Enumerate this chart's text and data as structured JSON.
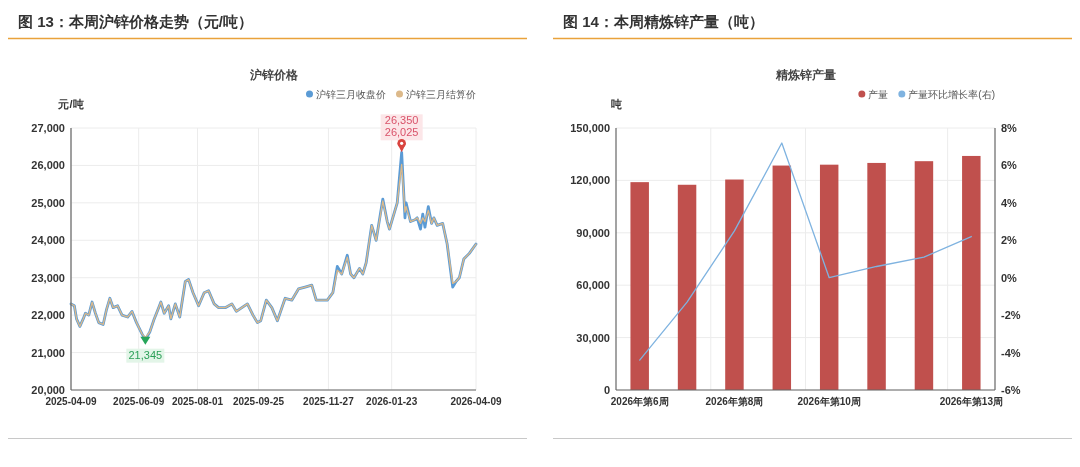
{
  "chart_data": [
    {
      "type": "line",
      "title": "图 13：本周沪锌价格走势（元/吨）",
      "subtitle": "沪锌价格",
      "ylabel": "元/吨",
      "x": [
        "2025-04-09",
        "2025-04-12",
        "2025-04-14",
        "2025-04-17",
        "2025-04-20",
        "2025-04-22",
        "2025-04-25",
        "2025-04-28",
        "2025-05-01",
        "2025-05-04",
        "2025-05-08",
        "2025-05-11",
        "2025-05-14",
        "2025-05-17",
        "2025-05-21",
        "2025-05-25",
        "2025-05-30",
        "2025-06-03",
        "2025-06-07",
        "2025-06-12",
        "2025-06-15",
        "2025-06-19",
        "2025-06-23",
        "2025-06-27",
        "2025-06-29",
        "2025-07-02",
        "2025-07-06",
        "2025-07-08",
        "2025-07-12",
        "2025-07-16",
        "2025-07-21",
        "2025-07-24",
        "2025-07-28",
        "2025-08-02",
        "2025-08-07",
        "2025-08-11",
        "2025-08-16",
        "2025-08-20",
        "2025-08-26",
        "2025-09-01",
        "2025-09-05",
        "2025-09-10",
        "2025-09-15",
        "2025-09-20",
        "2025-09-24",
        "2025-09-27",
        "2025-10-02",
        "2025-10-07",
        "2025-10-12",
        "2025-10-19",
        "2025-10-25",
        "2025-10-31",
        "2025-11-06",
        "2025-11-12",
        "2025-11-16",
        "2025-11-26",
        "2025-12-01",
        "2025-12-05",
        "2025-12-09",
        "2025-12-14",
        "2025-12-17",
        "2025-12-20",
        "2025-12-25",
        "2025-12-28",
        "2025-12-31",
        "2026-01-05",
        "2026-01-09",
        "2026-01-15",
        "2026-01-19",
        "2026-01-21",
        "2026-01-28",
        "2026-02-01",
        "2026-02-04",
        "2026-02-05",
        "2026-02-09",
        "2026-02-13",
        "2026-02-15",
        "2026-02-18",
        "2026-02-20",
        "2026-02-22",
        "2026-02-25",
        "2026-02-28",
        "2026-03-02",
        "2026-03-05",
        "2026-03-10",
        "2026-03-14",
        "2026-03-19",
        "2026-03-22",
        "2026-03-25",
        "2026-03-29",
        "2026-04-03",
        "2026-04-09"
      ],
      "series": [
        {
          "name": "沪锌三月收盘价",
          "color": "#5b9bd5",
          "values": [
            22300,
            22250,
            21900,
            21700,
            21900,
            22050,
            22000,
            22350,
            22050,
            21800,
            21750,
            22150,
            22450,
            22200,
            22250,
            22000,
            21950,
            22100,
            21800,
            21500,
            21345,
            21550,
            21900,
            22200,
            22350,
            22050,
            22250,
            21900,
            22300,
            21950,
            22900,
            22950,
            22600,
            22250,
            22600,
            22650,
            22300,
            22200,
            22200,
            22300,
            22100,
            22200,
            22300,
            22000,
            21800,
            21850,
            22400,
            22200,
            21850,
            22450,
            22400,
            22700,
            22750,
            22800,
            22400,
            22400,
            22600,
            23300,
            23100,
            23600,
            23100,
            23000,
            23250,
            23100,
            23400,
            24400,
            24000,
            25100,
            24500,
            24300,
            25000,
            26350,
            24600,
            25000,
            24500,
            24550,
            24600,
            24300,
            24700,
            24350,
            24900,
            24450,
            24600,
            24400,
            24450,
            23900,
            22750,
            22900,
            23000,
            23500,
            23650,
            23900
          ]
        },
        {
          "name": "沪锌三月结算价",
          "color": "#dcb98a",
          "values": [
            22300,
            22250,
            21900,
            21700,
            21900,
            22050,
            22000,
            22350,
            22050,
            21800,
            21750,
            22150,
            22450,
            22200,
            22250,
            22000,
            21950,
            22100,
            21800,
            21500,
            21400,
            21550,
            21900,
            22200,
            22350,
            22050,
            22250,
            21900,
            22300,
            21950,
            22900,
            22950,
            22600,
            22250,
            22600,
            22650,
            22300,
            22200,
            22200,
            22300,
            22100,
            22200,
            22300,
            22000,
            21800,
            21850,
            22400,
            22200,
            21850,
            22450,
            22400,
            22700,
            22750,
            22800,
            22400,
            22400,
            22600,
            23200,
            23100,
            23550,
            23100,
            23000,
            23250,
            23100,
            23400,
            24400,
            24000,
            25050,
            24500,
            24300,
            25000,
            26025,
            24750,
            24900,
            24500,
            24550,
            24600,
            24450,
            24600,
            24500,
            24800,
            24450,
            24600,
            24400,
            24450,
            23900,
            22850,
            22900,
            23000,
            23500,
            23650,
            23900
          ]
        }
      ],
      "xlim": [
        "2025-04-09",
        "2026-04-09"
      ],
      "xticks": [
        "2025-04-09",
        "2025-06-09",
        "2025-08-01",
        "2025-09-25",
        "2025-11-27",
        "2026-01-23",
        "2026-04-09"
      ],
      "ylim": [
        20000,
        27000
      ],
      "yticks": [
        {
          "value": 20000,
          "label": "20,000"
        },
        {
          "value": 21000,
          "label": "21,000"
        },
        {
          "value": 22000,
          "label": "22,000"
        },
        {
          "value": 23000,
          "label": "23,000"
        },
        {
          "value": 24000,
          "label": "24,000"
        },
        {
          "value": 25000,
          "label": "25,000"
        },
        {
          "value": 26000,
          "label": "26,000"
        },
        {
          "value": 27000,
          "label": "27,000"
        }
      ],
      "grid": true,
      "legend": "top right",
      "annotations": [
        {
          "text": "26,350",
          "x": "2026-02-01",
          "y": 26350
        },
        {
          "text": "26,025",
          "x": "2026-02-01",
          "y": 26025
        },
        {
          "text": "21,345",
          "x": "2025-06-15",
          "y": 21345
        }
      ]
    },
    {
      "type": "bar",
      "title": "图 14：本周精炼锌产量（吨）",
      "subtitle": "精炼锌产量",
      "ylabel": "吨",
      "categories": [
        "2026年第6周",
        null,
        "2026年第8周",
        null,
        "2026年第10周",
        null,
        null,
        "2026年第13周"
      ],
      "series": [
        {
          "name": "产量",
          "color": "#c0504d",
          "values": [
            119000,
            117500,
            120500,
            128500,
            129000,
            130000,
            131000,
            134000
          ]
        },
        {
          "name": "产量环比增长率(右)",
          "type": "line",
          "axis": "y2",
          "color": "#7fb3e0",
          "values": [
            -4.4,
            -1.3,
            2.5,
            7.2,
            0.0,
            0.6,
            1.1,
            2.2
          ]
        }
      ],
      "ylim": [
        0,
        150000
      ],
      "yticks": [
        0,
        {
          "value": 30000,
          "label": "30,000"
        },
        {
          "value": 60000,
          "label": "60,000"
        },
        {
          "value": 90000,
          "label": "90,000"
        },
        {
          "value": 120000,
          "label": "120,000"
        },
        {
          "value": 150000,
          "label": "150,000"
        }
      ],
      "y2lim": [
        -6,
        8
      ],
      "y2ticks": [
        {
          "value": -6,
          "label": "-6%"
        },
        {
          "value": -4,
          "label": "-4%"
        },
        {
          "value": -2,
          "label": "-2%"
        },
        {
          "value": 0,
          "label": "0%"
        },
        {
          "value": 2,
          "label": "2%"
        },
        {
          "value": 4,
          "label": "4%"
        },
        {
          "value": 6,
          "label": "6%"
        },
        {
          "value": 8,
          "label": "8%"
        }
      ],
      "grid": true,
      "legend": "top right"
    }
  ]
}
